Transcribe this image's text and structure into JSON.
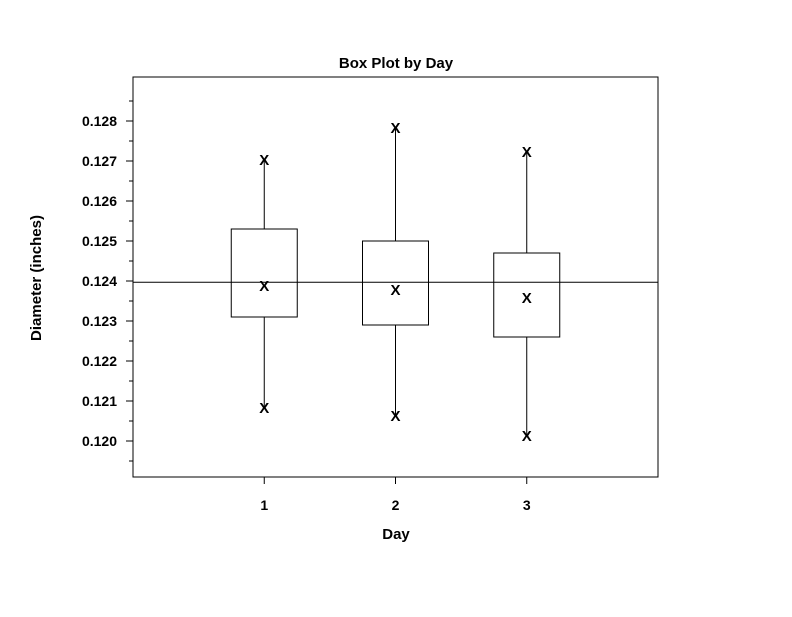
{
  "chart_data": {
    "type": "box",
    "title": "Box Plot by Day",
    "xlabel": "Day",
    "ylabel": "Diameter (inches)",
    "categories": [
      "1",
      "2",
      "3"
    ],
    "xlim": [
      0,
      4
    ],
    "ylim": [
      0.1191,
      0.1291
    ],
    "yticks": [
      "0.120",
      "0.121",
      "0.122",
      "0.123",
      "0.124",
      "0.125",
      "0.126",
      "0.127",
      "0.128"
    ],
    "reference_line": 0.12397,
    "marker_symbol": "X",
    "boxes": [
      {
        "day": "1",
        "min": 0.12085,
        "q1": 0.1231,
        "median": 0.1239,
        "q3": 0.1253,
        "max": 0.12705
      },
      {
        "day": "2",
        "min": 0.12065,
        "q1": 0.1229,
        "median": 0.1238,
        "q3": 0.125,
        "max": 0.12785
      },
      {
        "day": "3",
        "min": 0.12015,
        "q1": 0.1226,
        "median": 0.1236,
        "q3": 0.1247,
        "max": 0.12725
      }
    ],
    "grid": false,
    "legend": "none"
  }
}
